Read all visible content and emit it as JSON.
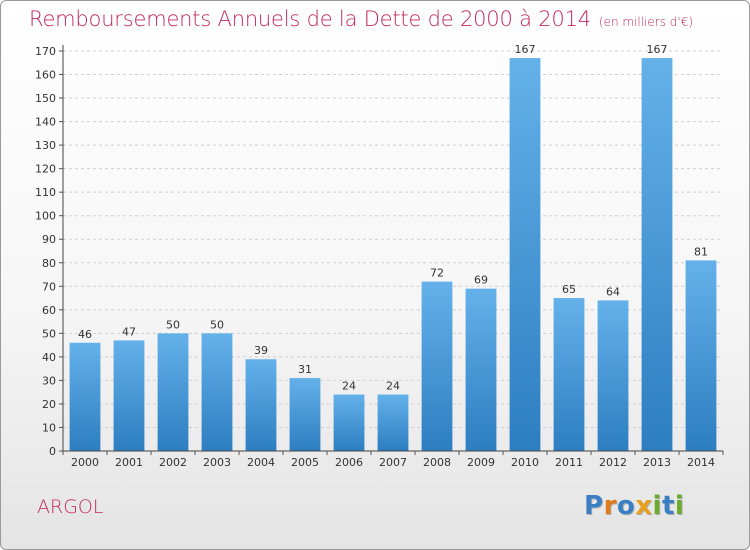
{
  "title": "Remboursements Annuels de la Dette de 2000 à 2014",
  "subtitle": "(en milliers d'€)",
  "location": "ARGOL",
  "logo": {
    "text": "Proxiti",
    "letters": [
      {
        "ch": "P",
        "color": "#3a7fc4"
      },
      {
        "ch": "r",
        "color": "#e07a1f"
      },
      {
        "ch": "o",
        "color": "#3a7fc4"
      },
      {
        "ch": "x",
        "color": "#e8a020"
      },
      {
        "ch": "i",
        "color": "#6aab2e"
      },
      {
        "ch": "t",
        "color": "#3a7fc4"
      },
      {
        "ch": "i",
        "color": "#6aab2e"
      }
    ]
  },
  "colors": {
    "title": "#c1285f",
    "bar_top": "#64b1ea",
    "bar_bottom": "#2d7ec1",
    "grid": "#cfcfcf",
    "axis_text": "#333333"
  },
  "chart_data": {
    "type": "bar",
    "categories": [
      "2000",
      "2001",
      "2002",
      "2003",
      "2004",
      "2005",
      "2006",
      "2007",
      "2008",
      "2009",
      "2010",
      "2011",
      "2012",
      "2013",
      "2014"
    ],
    "values": [
      46,
      47,
      50,
      50,
      39,
      31,
      24,
      24,
      72,
      69,
      167,
      65,
      64,
      167,
      81
    ],
    "ylim": [
      0,
      170
    ],
    "yticks": [
      0,
      10,
      20,
      30,
      40,
      50,
      60,
      70,
      80,
      90,
      100,
      110,
      120,
      130,
      140,
      150,
      160,
      170
    ],
    "grid": "horizontal dashed",
    "data_labels": true
  }
}
